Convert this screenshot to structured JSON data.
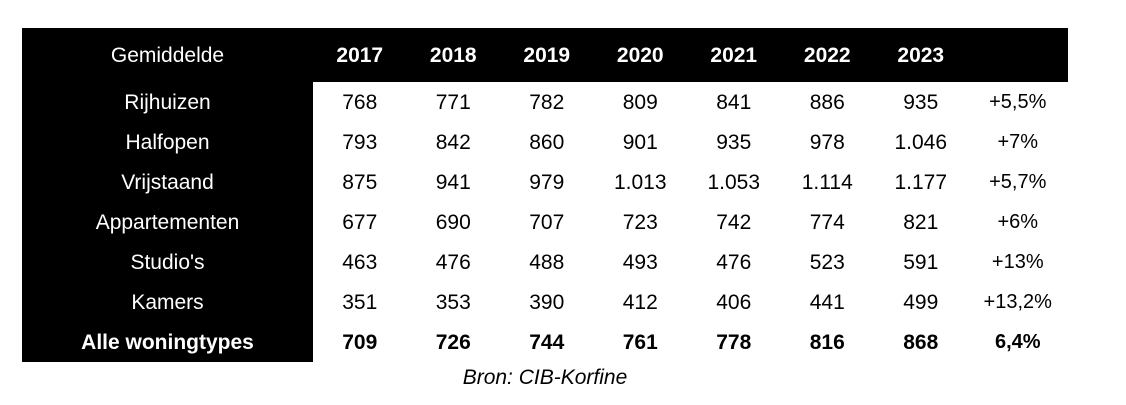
{
  "chart_data": {
    "type": "table",
    "title": "Gemiddelde",
    "categories": [
      "2017",
      "2018",
      "2019",
      "2020",
      "2021",
      "2022",
      "2023"
    ],
    "series": [
      {
        "name": "Rijhuizen",
        "values": [
          768,
          771,
          782,
          809,
          841,
          886,
          935
        ],
        "change": "+5,5%"
      },
      {
        "name": "Halfopen",
        "values": [
          793,
          842,
          860,
          901,
          935,
          978,
          1046
        ],
        "change": "+7%"
      },
      {
        "name": "Vrijstaand",
        "values": [
          875,
          941,
          979,
          1013,
          1053,
          1114,
          1177
        ],
        "change": "+5,7%"
      },
      {
        "name": "Appartementen",
        "values": [
          677,
          690,
          707,
          723,
          742,
          774,
          821
        ],
        "change": "+6%"
      },
      {
        "name": "Studio's",
        "values": [
          463,
          476,
          488,
          493,
          476,
          523,
          591
        ],
        "change": "+13%"
      },
      {
        "name": "Kamers",
        "values": [
          351,
          353,
          390,
          412,
          406,
          441,
          499
        ],
        "change": "+13,2%"
      },
      {
        "name": "Alle woningtypes",
        "values": [
          709,
          726,
          744,
          761,
          778,
          816,
          868
        ],
        "change": "6,4%"
      }
    ],
    "source": "Bron: CIB-Korfine",
    "layout_hints": {
      "header_row": "black background, white text",
      "label_column": "black background, white text",
      "grid": "off"
    }
  },
  "table": {
    "header": {
      "label": "Gemiddelde",
      "years": [
        "2017",
        "2018",
        "2019",
        "2020",
        "2021",
        "2022",
        "2023"
      ],
      "pct": ""
    },
    "rows": [
      {
        "label": "Rijhuizen",
        "values": [
          "768",
          "771",
          "782",
          "809",
          "841",
          "886",
          "935"
        ],
        "pct": "+5,5%",
        "bold": false
      },
      {
        "label": "Halfopen",
        "values": [
          "793",
          "842",
          "860",
          "901",
          "935",
          "978",
          "1.046"
        ],
        "pct": "+7%",
        "bold": false
      },
      {
        "label": "Vrijstaand",
        "values": [
          "875",
          "941",
          "979",
          "1.013",
          "1.053",
          "1.114",
          "1.177"
        ],
        "pct": "+5,7%",
        "bold": false
      },
      {
        "label": "Appartementen",
        "values": [
          "677",
          "690",
          "707",
          "723",
          "742",
          "774",
          "821"
        ],
        "pct": "+6%",
        "bold": false
      },
      {
        "label": "Studio's",
        "values": [
          "463",
          "476",
          "488",
          "493",
          "476",
          "523",
          "591"
        ],
        "pct": "+13%",
        "bold": false
      },
      {
        "label": "Kamers",
        "values": [
          "351",
          "353",
          "390",
          "412",
          "406",
          "441",
          "499"
        ],
        "pct": "+13,2%",
        "bold": false
      },
      {
        "label": "Alle woningtypes",
        "values": [
          "709",
          "726",
          "744",
          "761",
          "778",
          "816",
          "868"
        ],
        "pct": "6,4%",
        "bold": true
      }
    ],
    "caption": "Bron: CIB-Korfine"
  },
  "colors": {
    "table_bg": "#000000",
    "cell_bg": "#ffffff",
    "header_text": "#ffffff",
    "body_text": "#000000",
    "page_bg": "#ffffff"
  }
}
